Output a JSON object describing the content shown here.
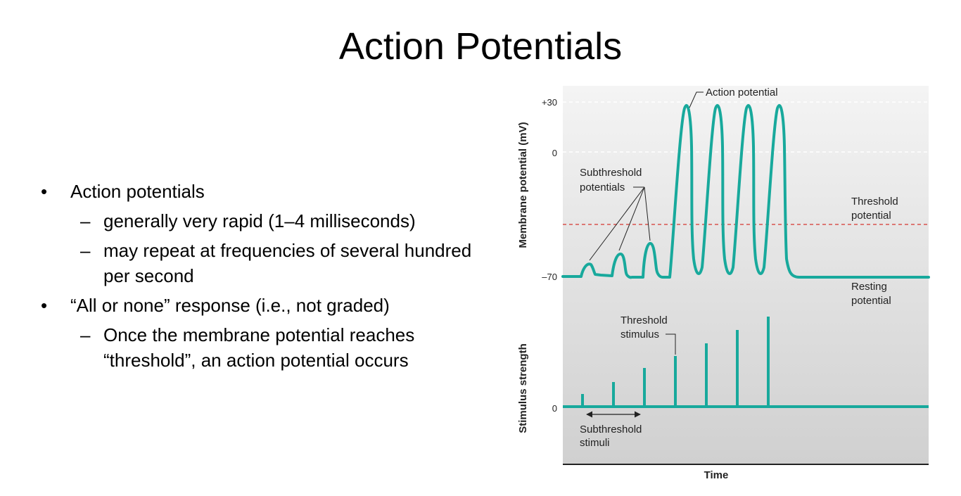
{
  "slide": {
    "title": "Action Potentials",
    "bullets": [
      {
        "marker": "•",
        "text": "Action potentials"
      },
      {
        "marker": "–",
        "text": "generally very rapid (1–4 milliseconds)"
      },
      {
        "marker": "–",
        "text": "may repeat at frequencies of several hundred per second"
      },
      {
        "marker": "•",
        "text": "“All or none” response (i.e., not graded)"
      },
      {
        "marker": "–",
        "text": "Once the membrane potential reaches “threshold”, an action potential occurs"
      }
    ]
  },
  "figure": {
    "top_ylabel": "Membrane potential (mV)",
    "top_ticks": [
      "+30",
      "0",
      "–70"
    ],
    "bottom_ylabel": "Stimulus strength",
    "bottom_tick": "0",
    "xlabel": "Time",
    "labels": {
      "action_potential": "Action potential",
      "subthreshold_potentials_line1": "Subthreshold",
      "subthreshold_potentials_line2": "potentials",
      "threshold_potential_line1": "Threshold",
      "threshold_potential_line2": "potential",
      "resting_potential_line1": "Resting",
      "resting_potential_line2": "potential",
      "threshold_stimulus_line1": "Threshold",
      "threshold_stimulus_line2": "stimulus",
      "subthreshold_stimuli_line1": "Subthreshold",
      "subthreshold_stimuli_line2": "stimuli"
    },
    "colors": {
      "trace": "#18a99c",
      "threshold_line": "#d9534f",
      "background_top": "#f3f3f3",
      "background_bottom": "#d2d2d2"
    }
  }
}
